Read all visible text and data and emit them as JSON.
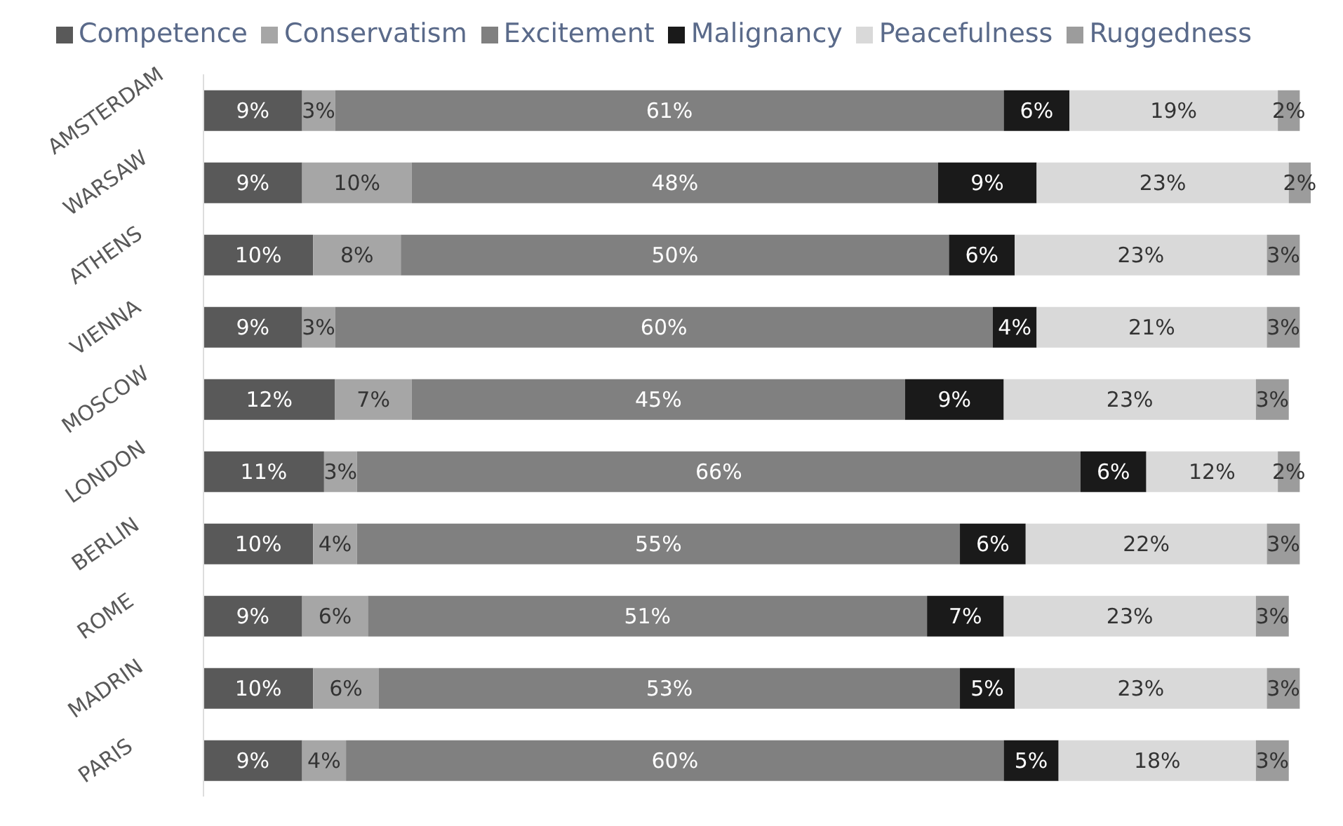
{
  "chart_data": {
    "type": "bar",
    "orientation": "horizontal",
    "stacked": true,
    "legend": "top",
    "tick_labels": "y",
    "xlim": [
      0,
      101
    ],
    "categories": [
      "AMSTERDAM",
      "WARSAW",
      "ATHENS",
      "VIENNA",
      "MOSCOW",
      "LONDON",
      "BERLIN",
      "ROME",
      "MADRIN",
      "PARIS"
    ],
    "series": [
      {
        "name": "Competence",
        "color": "#595959",
        "values": [
          9,
          9,
          10,
          9,
          12,
          11,
          10,
          9,
          10,
          9
        ],
        "value_labels": [
          "9%",
          "9%",
          "10%",
          "9%",
          "12%",
          "11%",
          "10%",
          "9%",
          "10%",
          "9%"
        ]
      },
      {
        "name": "Conservatism",
        "color": "#a6a6a6",
        "values": [
          3,
          10,
          8,
          3,
          7,
          3,
          4,
          6,
          6,
          4
        ],
        "value_labels": [
          "3%",
          "10%",
          "8%",
          "3%",
          "7%",
          "3%",
          "4%",
          "6%",
          "6%",
          "4%"
        ]
      },
      {
        "name": "Excitement",
        "color": "#808080",
        "values": [
          61,
          48,
          50,
          60,
          45,
          66,
          55,
          51,
          53,
          60
        ],
        "value_labels": [
          "61%",
          "48%",
          "50%",
          "60%",
          "45%",
          "66%",
          "55%",
          "51%",
          "53%",
          "60%"
        ]
      },
      {
        "name": "Malignancy",
        "color": "#1a1a1a",
        "values": [
          6,
          9,
          6,
          4,
          9,
          6,
          6,
          7,
          5,
          5
        ],
        "value_labels": [
          "6%",
          "9%",
          "6%",
          "4%",
          "9%",
          "6%",
          "6%",
          "7%",
          "5%",
          "5%"
        ]
      },
      {
        "name": "Peacefulness",
        "color": "#d9d9d9",
        "values": [
          19,
          23,
          23,
          21,
          23,
          12,
          22,
          23,
          23,
          18
        ],
        "value_labels": [
          "19%",
          "23%",
          "23%",
          "21%",
          "23%",
          "12%",
          "22%",
          "23%",
          "23%",
          "18%"
        ]
      },
      {
        "name": "Ruggedness",
        "color": "#9c9c9c",
        "values": [
          2,
          2,
          3,
          3,
          3,
          2,
          3,
          3,
          3,
          3
        ],
        "value_labels": [
          "2%",
          "2%",
          "3%",
          "3%",
          "3%",
          "2%",
          "3%",
          "3%",
          "3%",
          "3%"
        ]
      }
    ]
  }
}
